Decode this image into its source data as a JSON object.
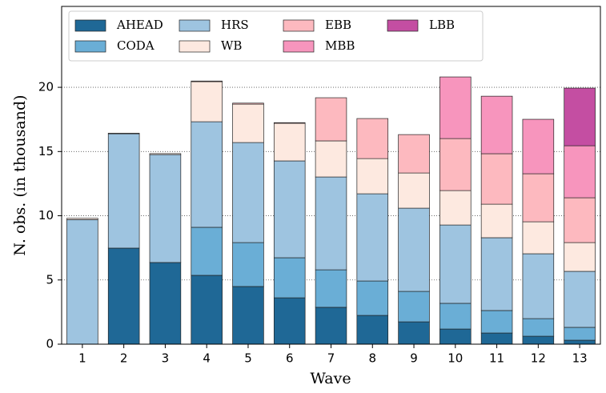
{
  "chart_data": {
    "type": "stacked-bar",
    "xlabel": "Wave",
    "ylabel": "N. obs. (in thousand)",
    "categories": [
      "1",
      "2",
      "3",
      "4",
      "5",
      "6",
      "7",
      "8",
      "9",
      "10",
      "11",
      "12",
      "13"
    ],
    "series": [
      {
        "name": "AHEAD",
        "color": "#1f6896",
        "values": [
          0,
          7.48,
          6.36,
          5.36,
          4.49,
          3.61,
          2.87,
          2.24,
          1.74,
          1.18,
          0.87,
          0.62,
          0.31
        ]
      },
      {
        "name": "CODA",
        "color": "#6aaed6",
        "values": [
          0,
          0,
          0,
          3.74,
          3.42,
          3.12,
          2.92,
          2.68,
          2.37,
          2.0,
          1.75,
          1.37,
          1.0
        ]
      },
      {
        "name": "HRS",
        "color": "#9ec4e0",
        "values": [
          9.7,
          8.9,
          8.4,
          8.22,
          7.79,
          7.54,
          7.23,
          6.79,
          6.48,
          6.1,
          5.67,
          5.05,
          4.36
        ]
      },
      {
        "name": "WB",
        "color": "#fde9e0",
        "values": [
          0.1,
          0.05,
          0.08,
          3.12,
          2.99,
          2.93,
          2.81,
          2.74,
          2.74,
          2.68,
          2.61,
          2.49,
          2.24
        ]
      },
      {
        "name": "EBB",
        "color": "#fdb9bf",
        "values": [
          0,
          0,
          0,
          0.05,
          0.08,
          0.05,
          3.36,
          3.12,
          2.99,
          4.05,
          3.93,
          3.74,
          3.49
        ]
      },
      {
        "name": "MBB",
        "color": "#f795bd",
        "values": [
          0,
          0,
          0,
          0,
          0,
          0,
          0,
          0,
          0,
          4.8,
          4.48,
          4.24,
          4.05
        ]
      },
      {
        "name": "LBB",
        "color": "#c44ea2",
        "values": [
          0,
          0,
          0,
          0,
          0,
          0,
          0,
          0,
          0,
          0,
          0,
          0,
          4.49
        ]
      }
    ],
    "ylim": [
      0,
      26.3
    ],
    "yticks": [
      0,
      5,
      10,
      15,
      20
    ],
    "grid": true,
    "legend": "upper left"
  }
}
